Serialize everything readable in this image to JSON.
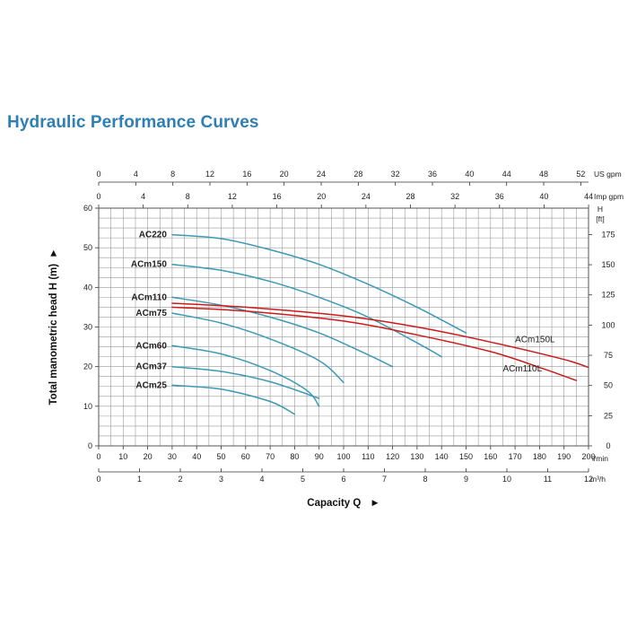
{
  "title": "Hydraulic Performance Curves",
  "colors": {
    "title": "#2f7fb5",
    "pump": "#3a9ab5",
    "pump_l": "#cc1b1b",
    "grid": "#999999"
  },
  "chart_data": {
    "type": "line",
    "xlabel": "Capacity Q",
    "ylabel": "Total manometric head H (m)",
    "xlim": [
      0,
      200
    ],
    "ylim": [
      0,
      60
    ],
    "grid": true,
    "x_unit": "l/min",
    "y_unit_right": "H [ft]",
    "x_ticks": [
      0,
      10,
      20,
      30,
      40,
      50,
      60,
      70,
      80,
      90,
      100,
      110,
      120,
      130,
      140,
      150,
      160,
      170,
      180,
      190,
      200
    ],
    "y_ticks": [
      0,
      10,
      20,
      30,
      40,
      50,
      60
    ],
    "secondary_axes": {
      "us_gpm": {
        "unit": "US gpm",
        "ticks": [
          0,
          4,
          8,
          12,
          16,
          20,
          24,
          28,
          32,
          36,
          40,
          44,
          48,
          52
        ]
      },
      "imp_gpm": {
        "unit": "Imp gpm",
        "ticks": [
          0,
          4,
          8,
          12,
          16,
          20,
          24,
          28,
          32,
          36,
          40,
          44
        ]
      },
      "m3h": {
        "unit": "m³/h",
        "ticks": [
          0,
          1,
          2,
          3,
          4,
          5,
          6,
          7,
          8,
          9,
          10,
          11,
          12
        ]
      },
      "ft": {
        "ticks": [
          0,
          25,
          50,
          75,
          100,
          125,
          150,
          175
        ]
      }
    },
    "series": [
      {
        "name": "AC220",
        "color": "#3a9ab5",
        "x": [
          30,
          50,
          70,
          90,
          110,
          130,
          150
        ],
        "y": [
          53.3,
          52.3,
          49.5,
          45.8,
          40.8,
          35.0,
          28.5
        ]
      },
      {
        "name": "ACm150",
        "color": "#3a9ab5",
        "x": [
          30,
          50,
          70,
          90,
          110,
          130,
          140
        ],
        "y": [
          45.8,
          44.3,
          41.5,
          37.5,
          32.5,
          26.0,
          22.5
        ]
      },
      {
        "name": "ACm110",
        "color": "#3a9ab5",
        "x": [
          30,
          50,
          70,
          90,
          110,
          120
        ],
        "y": [
          37.5,
          35.5,
          32.5,
          28.5,
          23.0,
          20.0
        ]
      },
      {
        "name": "ACm75",
        "color": "#3a9ab5",
        "x": [
          30,
          50,
          70,
          90,
          100
        ],
        "y": [
          33.5,
          31.0,
          27.0,
          21.5,
          16.0
        ]
      },
      {
        "name": "ACm60",
        "color": "#3a9ab5",
        "x": [
          30,
          50,
          70,
          85,
          90
        ],
        "y": [
          25.3,
          23.2,
          19.0,
          14.0,
          10.0
        ]
      },
      {
        "name": "ACm37",
        "color": "#3a9ab5",
        "x": [
          30,
          50,
          70,
          90
        ],
        "y": [
          20.0,
          18.8,
          16.2,
          12.0
        ]
      },
      {
        "name": "ACm25",
        "color": "#3a9ab5",
        "x": [
          30,
          50,
          70,
          80
        ],
        "y": [
          15.3,
          14.3,
          11.2,
          8.0
        ]
      },
      {
        "name": "ACm150L",
        "color": "#cc1b1b",
        "x": [
          30,
          60,
          100,
          130,
          160,
          190,
          200
        ],
        "y": [
          36.0,
          35.0,
          32.8,
          30.0,
          26.2,
          21.8,
          19.8
        ]
      },
      {
        "name": "ACm110L",
        "color": "#cc1b1b",
        "x": [
          30,
          60,
          100,
          130,
          160,
          180,
          195
        ],
        "y": [
          35.0,
          34.0,
          31.5,
          28.0,
          23.8,
          19.8,
          16.5
        ]
      }
    ]
  }
}
